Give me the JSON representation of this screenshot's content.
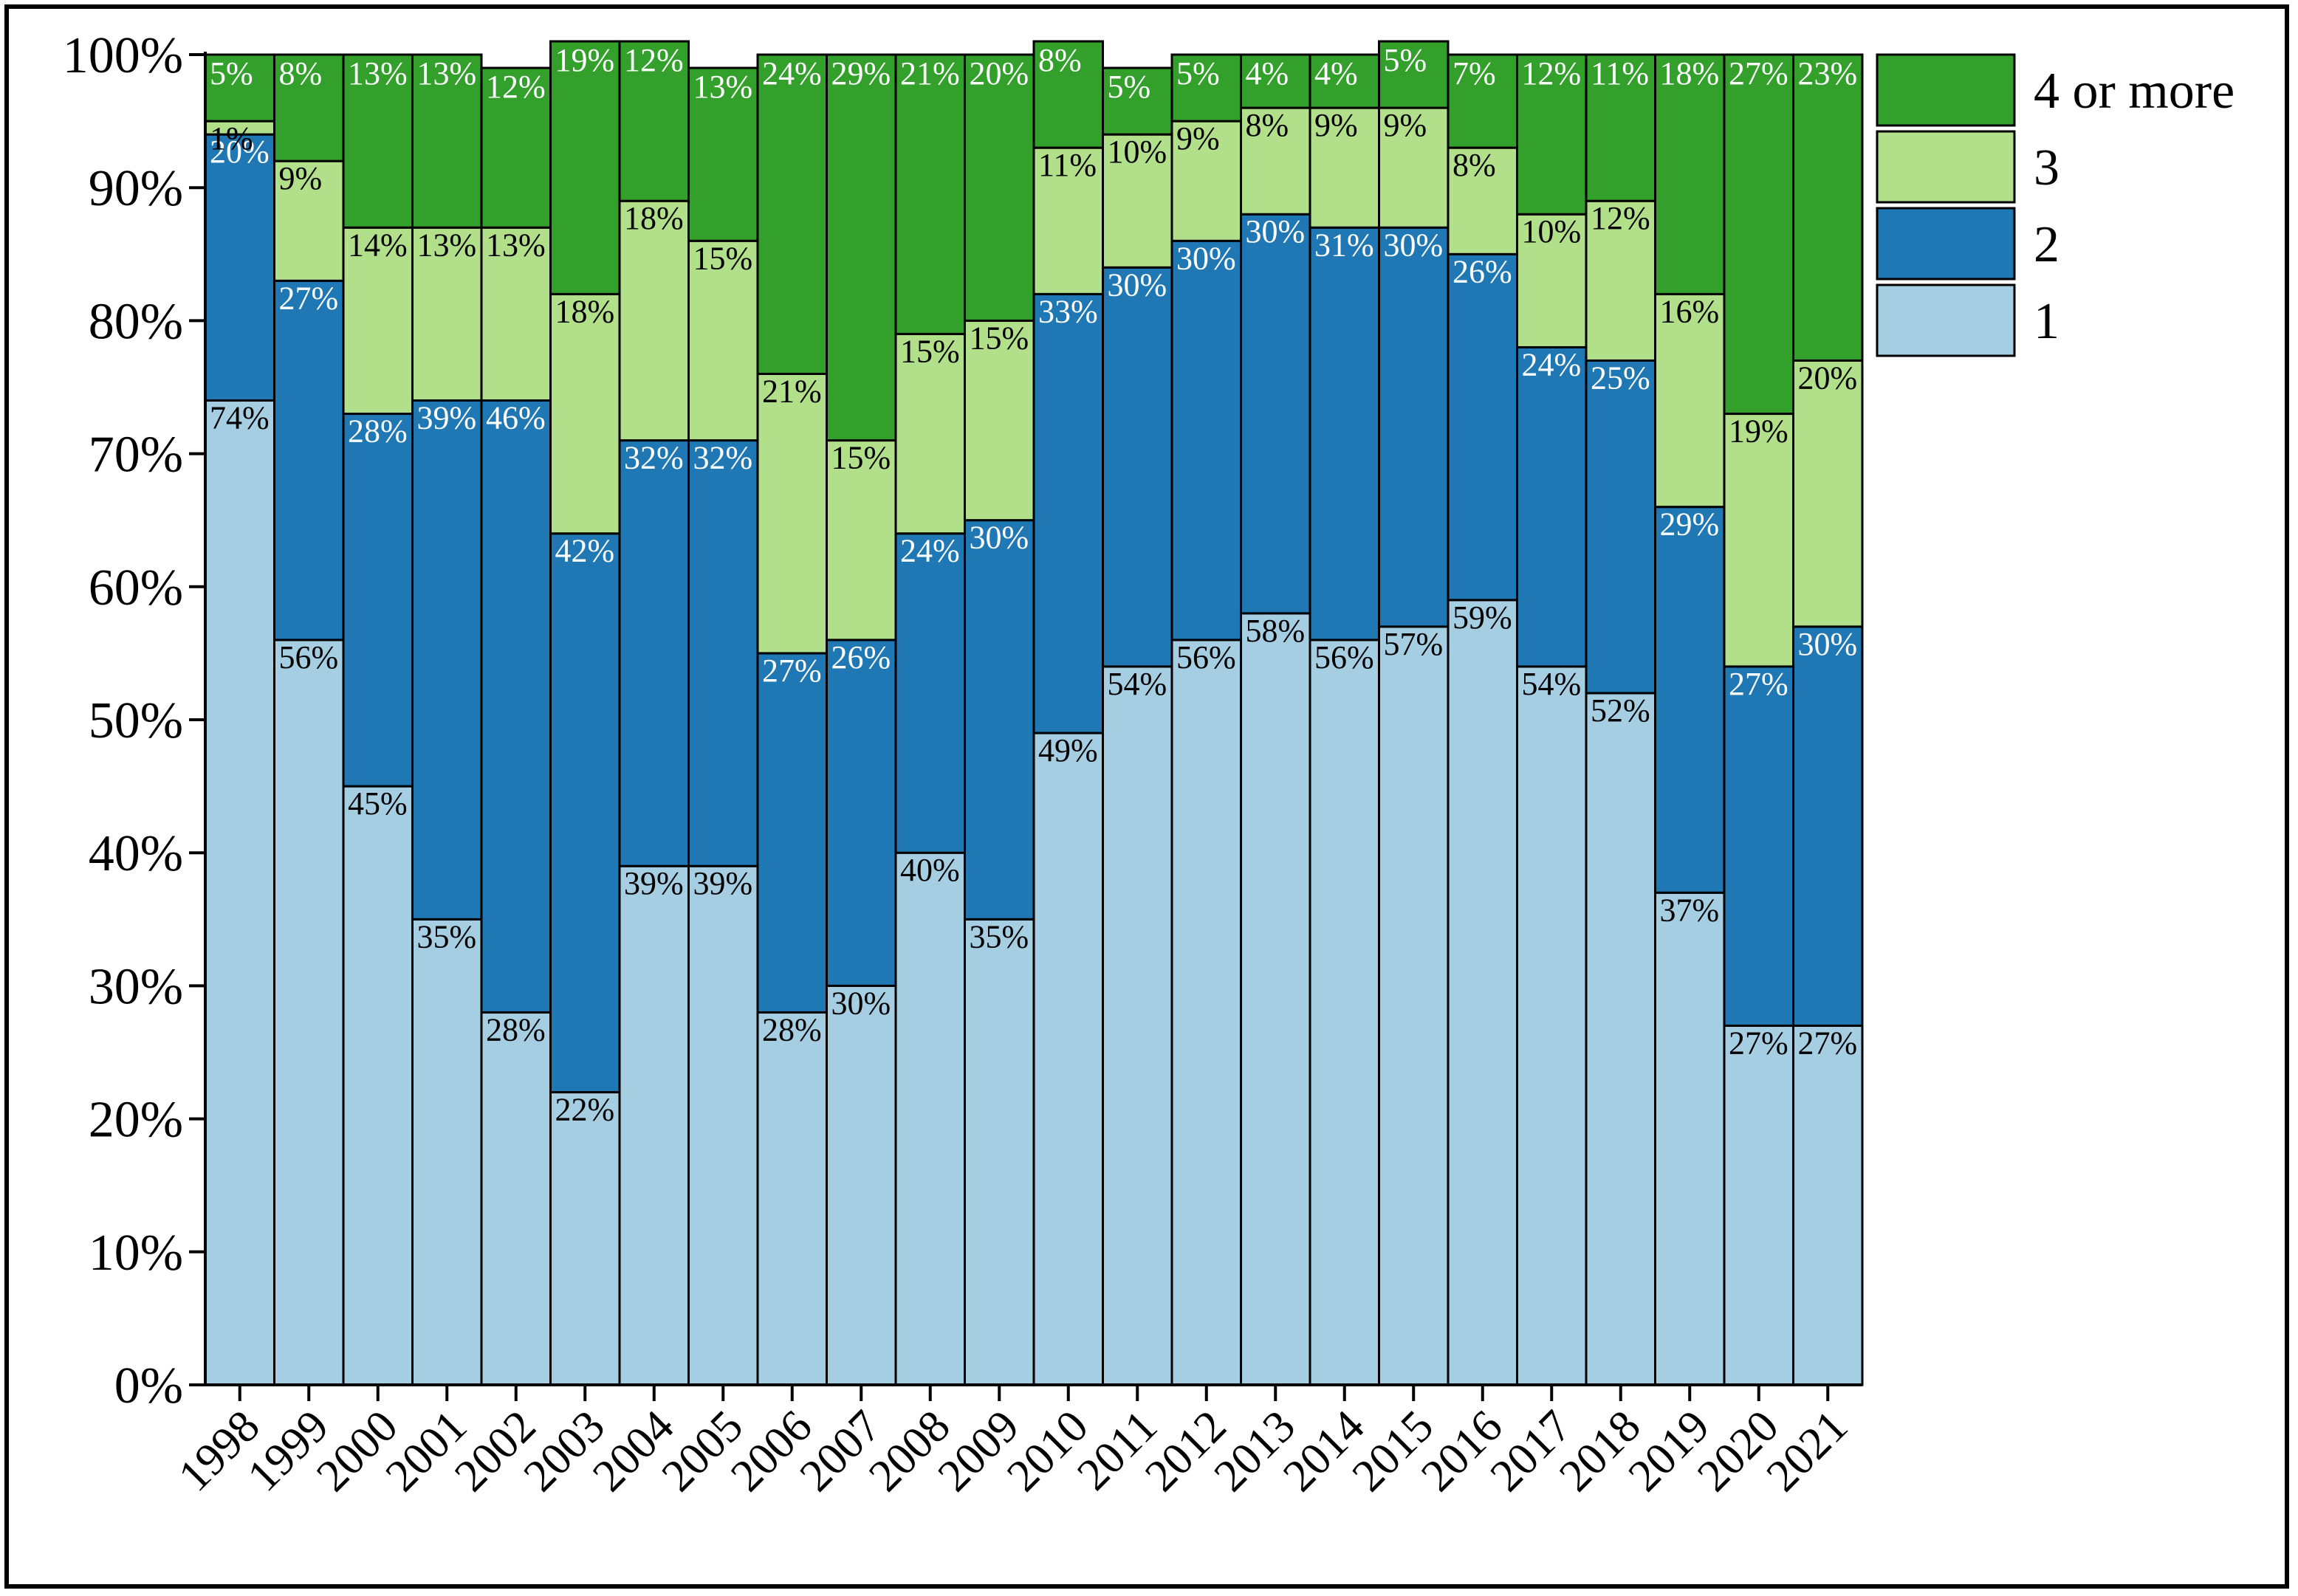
{
  "chart_data": {
    "type": "bar",
    "stacked": true,
    "title": "",
    "xlabel": "",
    "ylabel": "",
    "ylim": [
      0,
      100
    ],
    "y_ticks": [
      "0%",
      "10%",
      "20%",
      "30%",
      "40%",
      "50%",
      "60%",
      "70%",
      "80%",
      "90%",
      "100%"
    ],
    "legend_position": "top-right",
    "categories": [
      "1998",
      "1999",
      "2000",
      "2001",
      "2002",
      "2003",
      "2004",
      "2005",
      "2006",
      "2007",
      "2008",
      "2009",
      "2010",
      "2011",
      "2012",
      "2013",
      "2014",
      "2015",
      "2016",
      "2017",
      "2018",
      "2019",
      "2020",
      "2021"
    ],
    "series": [
      {
        "name": "1",
        "color": "#a6cee3",
        "label_color": "#000000",
        "values": [
          74,
          56,
          45,
          35,
          28,
          22,
          39,
          39,
          28,
          30,
          40,
          35,
          49,
          54,
          56,
          58,
          56,
          57,
          59,
          54,
          52,
          37,
          27,
          27
        ],
        "labels": [
          "74%",
          "56%",
          "45%",
          "35%",
          "28%",
          "22%",
          "39%",
          "39%",
          "28%",
          "30%",
          "40%",
          "35%",
          "49%",
          "54%",
          "56%",
          "58%",
          "56%",
          "57%",
          "59%",
          "54%",
          "52%",
          "37%",
          "27%",
          "27%"
        ]
      },
      {
        "name": "2",
        "color": "#1f78b4",
        "label_color": "#ffffff",
        "values": [
          20,
          27,
          28,
          39,
          46,
          42,
          32,
          32,
          27,
          26,
          24,
          30,
          33,
          30,
          30,
          30,
          31,
          30,
          26,
          24,
          25,
          29,
          27,
          30
        ],
        "labels": [
          "20%",
          "27%",
          "28%",
          "39%",
          "46%",
          "42%",
          "32%",
          "32%",
          "27%",
          "26%",
          "24%",
          "30%",
          "33%",
          "30%",
          "30%",
          "30%",
          "31%",
          "30%",
          "26%",
          "24%",
          "25%",
          "29%",
          "27%",
          "30%"
        ]
      },
      {
        "name": "3",
        "color": "#b2df8a",
        "label_color": "#000000",
        "values": [
          1,
          9,
          14,
          13,
          13,
          18,
          18,
          15,
          21,
          15,
          15,
          15,
          11,
          10,
          9,
          8,
          9,
          9,
          8,
          10,
          12,
          16,
          19,
          20
        ],
        "labels": [
          "1%",
          "9%",
          "14%",
          "13%",
          "13%",
          "18%",
          "18%",
          "15%",
          "21%",
          "15%",
          "15%",
          "15%",
          "11%",
          "10%",
          "9%",
          "8%",
          "9%",
          "9%",
          "8%",
          "10%",
          "12%",
          "16%",
          "19%",
          "20%"
        ]
      },
      {
        "name": "4 or more",
        "color": "#33a02c",
        "label_color": "#ffffff",
        "values": [
          5,
          8,
          13,
          13,
          12,
          19,
          12,
          13,
          24,
          29,
          21,
          20,
          8,
          5,
          5,
          4,
          4,
          5,
          7,
          12,
          11,
          18,
          27,
          23
        ],
        "labels": [
          "5%",
          "8%",
          "13%",
          "13%",
          "12%",
          "19%",
          "12%",
          "13%",
          "24%",
          "29%",
          "21%",
          "20%",
          "8%",
          "5%",
          "5%",
          "4%",
          "4%",
          "5%",
          "7%",
          "12%",
          "11%",
          "18%",
          "27%",
          "23%"
        ]
      }
    ],
    "legend_order": [
      "4 or more",
      "3",
      "2",
      "1"
    ]
  }
}
